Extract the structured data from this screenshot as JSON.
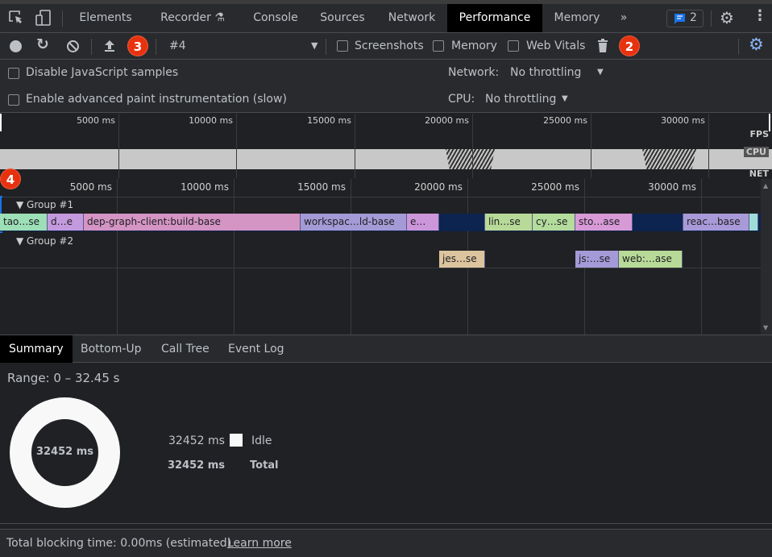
{
  "tabs": [
    {
      "label": "Elements"
    },
    {
      "label": "Recorder"
    },
    {
      "label": "Console"
    },
    {
      "label": "Sources"
    },
    {
      "label": "Network"
    },
    {
      "label": "Performance"
    },
    {
      "label": "Memory"
    }
  ],
  "issues_count": "2",
  "toolbar": {
    "profile": "#4",
    "screenshots": "Screenshots",
    "memory": "Memory",
    "web_vitals": "Web Vitals"
  },
  "options": {
    "disable_js": "Disable JavaScript samples",
    "advanced_paint": "Enable advanced paint instrumentation (slow)",
    "network_label": "Network:",
    "network_value": "No throttling",
    "cpu_label": "CPU:",
    "cpu_value": "No throttling"
  },
  "overview": {
    "ticks": [
      "5000 ms",
      "10000 ms",
      "15000 ms",
      "20000 ms",
      "25000 ms",
      "30000 ms"
    ],
    "fps": "FPS",
    "cpu": "CPU",
    "net": "NET"
  },
  "flame": {
    "ticks": [
      "5000 ms",
      "10000 ms",
      "15000 ms",
      "20000 ms",
      "25000 ms",
      "30000 ms"
    ],
    "group1": "Group #1",
    "group2": "Group #2",
    "row1": [
      {
        "label": "tao…se",
        "start": 0,
        "end": 2030,
        "color": "#9ddfb6"
      },
      {
        "label": "d…e",
        "start": 2030,
        "end": 3590,
        "color": "#c49ade"
      },
      {
        "label": "dep-graph-client:build-base",
        "start": 3590,
        "end": 12860,
        "color": "#d494c4"
      },
      {
        "label": "workspac…ld-base",
        "start": 12860,
        "end": 17410,
        "color": "#a49ad6"
      },
      {
        "label": "e…",
        "start": 17410,
        "end": 18790,
        "color": "#cc96da"
      },
      {
        "label": "",
        "start": 18790,
        "end": 20760,
        "color": "#0d2350"
      },
      {
        "label": "lin…se",
        "start": 20760,
        "end": 22790,
        "color": "#b8da98"
      },
      {
        "label": "cy…se",
        "start": 22790,
        "end": 24620,
        "color": "#b4dc9c"
      },
      {
        "label": "sto…ase",
        "start": 24620,
        "end": 27070,
        "color": "#d89ad6"
      },
      {
        "label": "",
        "start": 27070,
        "end": 29240,
        "color": "#0d2350"
      },
      {
        "label": "reac…base",
        "start": 29240,
        "end": 32070,
        "color": "#a89ad8"
      },
      {
        "label": "",
        "start": 32070,
        "end": 32450,
        "color": "#9edcd8"
      }
    ],
    "row2": [
      {
        "label": "jes…se",
        "start": 18790,
        "end": 20760,
        "color": "#dcc49e"
      },
      {
        "label": "js:…se",
        "start": 24620,
        "end": 26480,
        "color": "#a49ad8"
      },
      {
        "label": "web:…ase",
        "start": 26480,
        "end": 29200,
        "color": "#b8da98"
      }
    ]
  },
  "bottom_tabs": [
    {
      "label": "Summary"
    },
    {
      "label": "Bottom-Up"
    },
    {
      "label": "Call Tree"
    },
    {
      "label": "Event Log"
    }
  ],
  "summary": {
    "range": "Range: 0 – 32.45 s",
    "donut_center": "32452 ms",
    "idle_value": "32452 ms",
    "idle_label": "Idle",
    "total_value": "32452 ms",
    "total_label": "Total",
    "idle_color": "#f8f8f8"
  },
  "footer": {
    "tbt": "Total blocking time: 0.00ms (estimated)",
    "learn_more": "Learn more"
  },
  "annotations": [
    "2",
    "3",
    "4"
  ]
}
